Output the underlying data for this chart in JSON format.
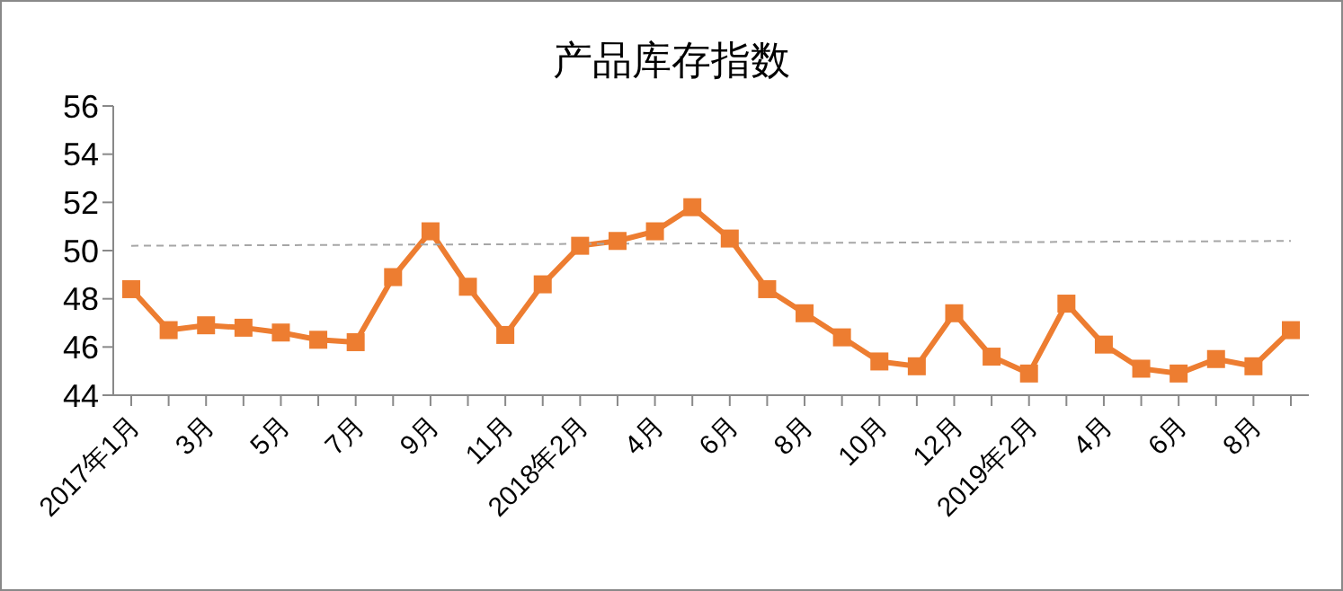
{
  "chart_data": {
    "type": "line",
    "title": "产品库存指数",
    "categories": [
      "2017年1月",
      null,
      "3月",
      null,
      "5月",
      null,
      "7月",
      null,
      "9月",
      null,
      "11月",
      null,
      "2018年2月",
      null,
      "4月",
      null,
      "6月",
      null,
      "8月",
      null,
      "10月",
      null,
      "12月",
      null,
      "2019年2月",
      null,
      "4月",
      null,
      "6月",
      null,
      "8月",
      null
    ],
    "series": [
      {
        "color": "#ed7d31",
        "marker": "square",
        "line_style": "solid",
        "values": [
          48.4,
          46.7,
          46.9,
          46.8,
          46.6,
          46.3,
          46.2,
          48.9,
          50.8,
          48.5,
          46.5,
          48.6,
          50.2,
          50.4,
          50.8,
          51.8,
          50.5,
          48.4,
          47.4,
          46.4,
          45.4,
          45.2,
          47.4,
          45.6,
          44.9,
          47.8,
          46.1,
          45.1,
          44.9,
          45.5,
          45.2,
          46.7
        ]
      },
      {
        "type": "line",
        "color": "#a6a6a6",
        "marker": "none",
        "line_style": "dashed",
        "values": [
          50.2,
          null,
          null,
          null,
          null,
          null,
          null,
          null,
          null,
          null,
          null,
          null,
          null,
          null,
          null,
          null,
          null,
          null,
          null,
          null,
          null,
          null,
          null,
          null,
          null,
          null,
          null,
          null,
          null,
          null,
          null,
          50.4
        ]
      }
    ],
    "ylim": [
      44,
      56
    ],
    "yticks": [
      44,
      46,
      48,
      50,
      52,
      54,
      56
    ]
  }
}
